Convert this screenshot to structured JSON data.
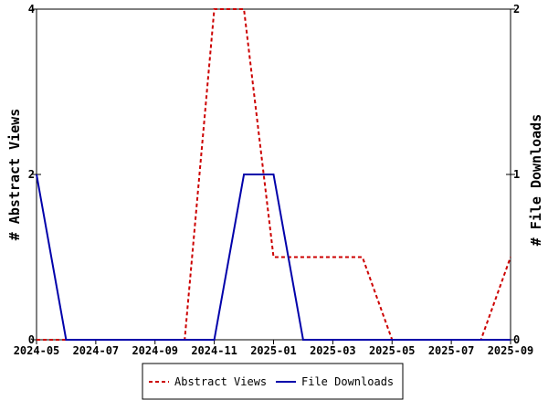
{
  "chart_data": {
    "type": "line",
    "x_months": [
      "2024-05",
      "2024-06",
      "2024-07",
      "2024-08",
      "2024-09",
      "2024-10",
      "2024-11",
      "2024-12",
      "2025-01",
      "2025-02",
      "2025-03",
      "2025-04",
      "2025-05",
      "2025-06",
      "2025-07",
      "2025-08",
      "2025-09"
    ],
    "x_ticks": [
      "2024-05",
      "2024-07",
      "2024-09",
      "2024-11",
      "2025-01",
      "2025-03",
      "2025-05",
      "2025-07",
      "2025-09"
    ],
    "xlim": [
      "2024-05",
      "2025-09"
    ],
    "series": [
      {
        "name": "Abstract Views",
        "axis": "left",
        "color": "#cc0000",
        "dash": true,
        "values": [
          0,
          0,
          0,
          0,
          0,
          0,
          4,
          4,
          1,
          1,
          1,
          1,
          0,
          0,
          0,
          0,
          1
        ]
      },
      {
        "name": "File Downloads",
        "axis": "right",
        "color": "#0000aa",
        "dash": false,
        "values": [
          1,
          0,
          0,
          0,
          0,
          0,
          0,
          1,
          1,
          0,
          0,
          0,
          0,
          0,
          0,
          0,
          0
        ]
      }
    ],
    "y_left": {
      "label": "# Abstract Views",
      "ylim": [
        0,
        4
      ],
      "ticks": [
        "0",
        "2",
        "4"
      ]
    },
    "y_right": {
      "label": "# File Downloads",
      "ylim": [
        0,
        2
      ],
      "ticks": [
        "0",
        "1",
        "2"
      ]
    },
    "legend": {
      "position": "bottom-center"
    },
    "grid": false
  }
}
